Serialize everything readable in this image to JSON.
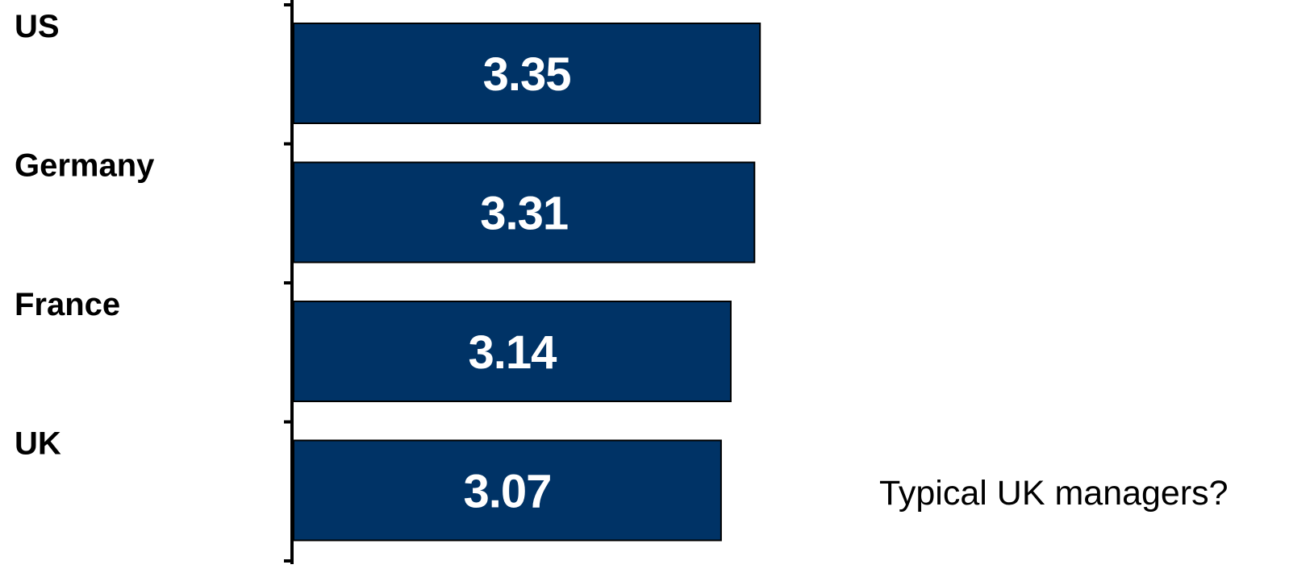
{
  "chart_data": {
    "type": "bar",
    "orientation": "horizontal",
    "categories": [
      "US",
      "Germany",
      "France",
      "UK"
    ],
    "values": [
      3.35,
      3.31,
      3.14,
      3.07
    ],
    "data_labels": [
      "3.35",
      "3.31",
      "3.14",
      "3.07"
    ],
    "title": "",
    "xlabel": "",
    "ylabel": "",
    "grid": false,
    "bar_color": "#003366",
    "annotation": "Typical UK managers?"
  }
}
